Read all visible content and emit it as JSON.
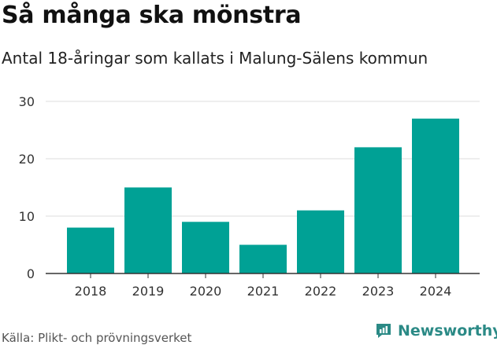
{
  "title": "Så många ska mönstra",
  "subtitle": "Antal 18-åringar som kallats i Malung-Sälens kommun",
  "source": "Källa: Plikt- och prövningsverket",
  "brand": {
    "name": "Newsworthy",
    "icon": "newsworthy-logo-icon",
    "color": "#2b8a86"
  },
  "chart_data": {
    "type": "bar",
    "categories": [
      "2018",
      "2019",
      "2020",
      "2021",
      "2022",
      "2023",
      "2024"
    ],
    "values": [
      8,
      15,
      9,
      5,
      11,
      22,
      27
    ],
    "title": "Så många ska mönstra",
    "subtitle": "Antal 18-åringar som kallats i Malung-Sälens kommun",
    "xlabel": "",
    "ylabel": "",
    "ylim": [
      0,
      30
    ],
    "yticks": [
      0,
      10,
      20,
      30
    ],
    "grid": true,
    "bar_color": "#00a195"
  }
}
